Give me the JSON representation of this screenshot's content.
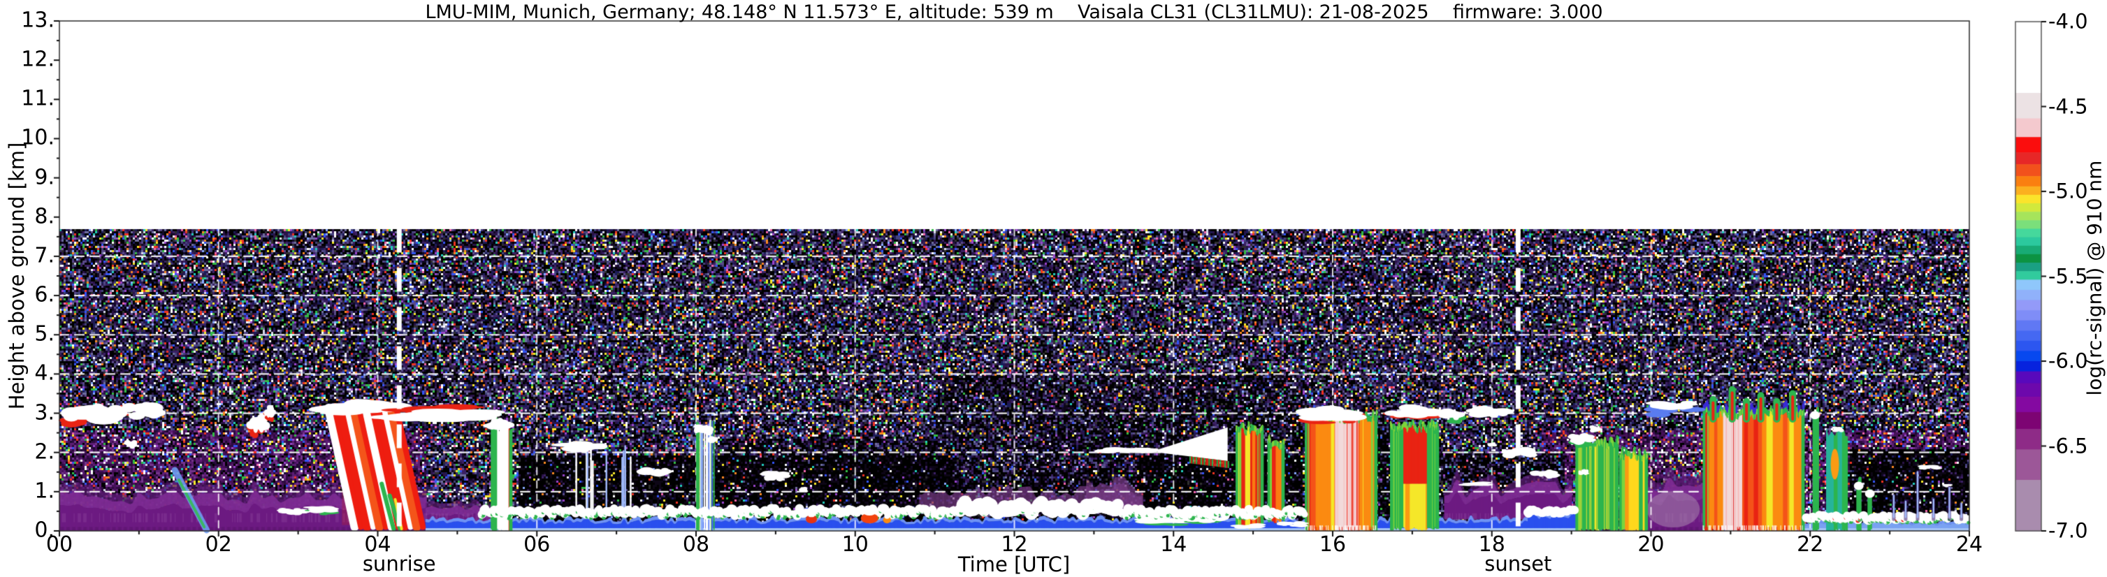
{
  "figure": {
    "title": "LMU-MIM, Munich, Germany; 48.148° N 11.573° E, altitude: 539 m    Vaisala CL31 (CL31LMU): 21-08-2025    firmware: 3.000"
  },
  "axes": {
    "xlabel": "Time [UTC]",
    "ylabel": "Height above ground [km]",
    "xticks": [
      "00",
      "02",
      "04",
      "06",
      "08",
      "10",
      "12",
      "14",
      "16",
      "18",
      "20",
      "22",
      "24"
    ],
    "yticks": [
      "13.",
      "12.",
      "11.",
      "10.",
      "9.",
      "8.",
      "7.",
      "6.",
      "5.",
      "4.",
      "3.",
      "2.",
      "1.",
      "0."
    ],
    "x_range_hours": [
      0,
      24
    ],
    "y_range_km": [
      0,
      13
    ]
  },
  "annotations": [
    {
      "label": "sunrise",
      "time_utc": 4.27
    },
    {
      "label": "sunset",
      "time_utc": 18.33
    }
  ],
  "colorbar": {
    "label": "log(rc-signal) @ 910 nm",
    "ticks": [
      "-4.0",
      "-4.5",
      "-5.0",
      "-5.5",
      "-6.0",
      "-6.5",
      "-7.0"
    ],
    "value_range": [
      -7.0,
      -4.0
    ],
    "segments": [
      [
        -4.0,
        -4.42,
        "#ffffff"
      ],
      [
        -4.42,
        -4.57,
        "#ece2e4"
      ],
      [
        -4.57,
        -4.68,
        "#f4c9ce"
      ],
      [
        -4.68,
        -4.77,
        "#fb0d0d"
      ],
      [
        -4.77,
        -4.84,
        "#e72727"
      ],
      [
        -4.84,
        -4.91,
        "#f2511c"
      ],
      [
        -4.91,
        -4.97,
        "#fa7f10"
      ],
      [
        -4.97,
        -5.02,
        "#fbb01f"
      ],
      [
        -5.02,
        -5.07,
        "#fbe42b"
      ],
      [
        -5.07,
        -5.12,
        "#d2e93c"
      ],
      [
        -5.12,
        -5.17,
        "#a6e45b"
      ],
      [
        -5.17,
        -5.22,
        "#7bdf7b"
      ],
      [
        -5.22,
        -5.27,
        "#45d89c"
      ],
      [
        -5.27,
        -5.32,
        "#2cc99e"
      ],
      [
        -5.32,
        -5.37,
        "#18ab75"
      ],
      [
        -5.37,
        -5.42,
        "#0c9342"
      ],
      [
        -5.42,
        -5.47,
        "#1aa083"
      ],
      [
        -5.47,
        -5.52,
        "#31cb9d"
      ],
      [
        -5.52,
        -5.58,
        "#8fc7fb"
      ],
      [
        -5.58,
        -5.64,
        "#90b1fa"
      ],
      [
        -5.64,
        -5.7,
        "#939af8"
      ],
      [
        -5.7,
        -5.76,
        "#7f8df7"
      ],
      [
        -5.76,
        -5.82,
        "#6078f4"
      ],
      [
        -5.82,
        -5.88,
        "#4568f2"
      ],
      [
        -5.88,
        -5.94,
        "#2c56f0"
      ],
      [
        -5.94,
        -6.0,
        "#0748ef"
      ],
      [
        -6.0,
        -6.06,
        "#0723de"
      ],
      [
        -6.06,
        -6.13,
        "#5809bc"
      ],
      [
        -6.13,
        -6.21,
        "#6d08ac"
      ],
      [
        -6.21,
        -6.3,
        "#8409a1"
      ],
      [
        -6.3,
        -6.4,
        "#7d0473"
      ],
      [
        -6.4,
        -6.52,
        "#8e2b87"
      ],
      [
        -6.52,
        -6.7,
        "#9c5798"
      ],
      [
        -6.7,
        -7.0,
        "#a98cae"
      ]
    ]
  },
  "chart_data": {
    "type": "heatmap",
    "title": "Ceilometer attenuated backscatter quicklook",
    "site": "LMU-MIM, Munich, Germany",
    "latitude": "48.148° N",
    "longitude": "11.573° E",
    "altitude_m": 539,
    "instrument": "Vaisala CL31 (CL31LMU)",
    "date": "21-08-2025",
    "firmware": "3.000",
    "xlabel": "Time [UTC]",
    "ylabel": "Height above ground [km]",
    "value_label": "log(rc-signal) @ 910 nm",
    "value_range": [
      -7.0,
      -4.0
    ],
    "x_range_hours": [
      0,
      24
    ],
    "y_range_km": [
      0,
      13
    ],
    "data_top_km": 7.7,
    "sunrise_utc": 4.27,
    "sunset_utc": 18.33,
    "grid": {
      "x_step_hours": 2,
      "y_step_km": 1,
      "style": "white dashed"
    },
    "dark_zones": [
      {
        "t0": 5.75,
        "t1": 11.25,
        "top": 1.95,
        "s": 0.82
      },
      {
        "t0": 11.25,
        "t1": 13.55,
        "top": 1.5,
        "s": 0.5
      },
      {
        "t0": 13.55,
        "t1": 15.62,
        "top": 1.95,
        "s": 0.82
      },
      {
        "t0": 16.5,
        "t1": 16.78,
        "top": 2.6,
        "s": 0.7
      },
      {
        "t0": 17.3,
        "t1": 18.9,
        "top": 2.0,
        "s": 0.4
      },
      {
        "t0": 22.48,
        "t1": 24,
        "top": 2.1,
        "s": 0.8
      },
      {
        "t0": 8.3,
        "t1": 11.0,
        "top": 2.4,
        "s": 0.35
      },
      {
        "t0": 11.0,
        "t1": 15.6,
        "top": 4.0,
        "s": 0.25
      }
    ],
    "night_layers": [
      {
        "t0": 0,
        "t1": 4.6,
        "top": 1.05
      },
      {
        "t0": 4.6,
        "t1": 5.45,
        "top": 0.7
      },
      {
        "t0": 17.4,
        "t1": 19.0,
        "top": 1.25,
        "base": 0.3
      },
      {
        "t0": 19.9,
        "t1": 20.65,
        "top": 1.35
      }
    ],
    "haze": [
      {
        "t0": 10.8,
        "t1": 13.6,
        "h0": 0.5,
        "h1": 1.0
      },
      {
        "t0": 12.9,
        "t1": 13.6,
        "h0": 0.5,
        "h1": 1.15
      }
    ],
    "blue_layer": [
      {
        "t0": 4.6,
        "t1": 18.45,
        "top": 0.32
      },
      {
        "t0": 18.45,
        "t1": 19.1,
        "top": 0.5
      },
      {
        "t0": 21.92,
        "t1": 24,
        "top": 0.26
      }
    ],
    "bl_line": [
      {
        "t0": 5.3,
        "t1": 15.65,
        "h": 0.48,
        "amp": 0.1,
        "bump": [
          11.3,
          13.3,
          0.22
        ],
        "green": true
      },
      {
        "t0": 18.45,
        "t1": 19.05,
        "h": 0.5,
        "amp": 0.06
      },
      {
        "t0": 21.95,
        "t1": 24,
        "h": 0.34,
        "amp": 0.07,
        "green": true,
        "redUntil": 23.2
      }
    ],
    "bl_patches": [
      {
        "t": 9.45,
        "h": 0.3,
        "w": 0.14,
        "d": 0.22,
        "c": "#e63311"
      },
      {
        "t": 10.18,
        "h": 0.32,
        "w": 0.22,
        "d": 0.26,
        "c": "#f2430e"
      },
      {
        "t": 10.4,
        "h": 0.28,
        "w": 0.1,
        "d": 0.18,
        "c": "#fb8b12"
      },
      {
        "t": 11.9,
        "h": 0.5,
        "w": 0.3,
        "d": 0.3,
        "c": "#ffffff"
      },
      {
        "t": 12.5,
        "h": 0.55,
        "w": 0.3,
        "d": 0.3,
        "c": "#ffffff"
      }
    ],
    "diag_streaks": [
      {
        "t0": 1.45,
        "t1": 1.85,
        "h0": 1.55,
        "h1": 0.02,
        "c": "#6f9cf3",
        "w": 9
      },
      {
        "t0": 1.5,
        "t1": 1.82,
        "h0": 1.3,
        "h1": 0.1,
        "c": "#35bb55",
        "w": 4
      }
    ],
    "spikes23": [
      {
        "t": 23.05,
        "h": 0.9
      },
      {
        "t": 23.2,
        "h": 0.75
      },
      {
        "t": 23.35,
        "h": 1.5
      },
      {
        "t": 23.55,
        "h": 0.8
      },
      {
        "t": 23.75,
        "h": 1.1
      },
      {
        "t": 23.9,
        "h": 0.7
      }
    ],
    "wedge": {
      "t0": 13.8,
      "t1": 14.68,
      "top0": 2.07,
      "top1": 2.64,
      "bot0": 2.0,
      "bot1": 1.78
    },
    "clouds": [
      [
        0.35,
        3.0,
        0.55,
        0.3,
        "red_low"
      ],
      [
        0.95,
        3.05,
        0.5,
        0.28,
        null
      ],
      [
        0.9,
        2.2,
        0.12,
        0.12,
        null
      ],
      [
        2.5,
        2.75,
        0.18,
        0.28,
        "red_low"
      ],
      [
        2.64,
        3.05,
        0.1,
        0.18,
        "red_low"
      ],
      [
        2.95,
        0.5,
        0.3,
        0.1,
        null
      ],
      [
        3.3,
        0.55,
        0.28,
        0.1,
        "green_low"
      ],
      [
        3.8,
        3.15,
        0.8,
        0.22,
        null
      ],
      [
        4.75,
        2.95,
        1.15,
        0.2,
        "red_top"
      ],
      [
        5.5,
        2.72,
        0.25,
        0.18,
        null
      ],
      [
        6.55,
        2.15,
        0.5,
        0.15,
        null
      ],
      [
        7.5,
        1.5,
        0.3,
        0.15,
        null
      ],
      [
        8.09,
        2.6,
        0.18,
        0.18,
        null
      ],
      [
        8.22,
        2.32,
        0.1,
        0.1,
        null
      ],
      [
        9.0,
        1.4,
        0.25,
        0.15,
        null
      ],
      [
        9.35,
        1.05,
        0.08,
        0.08,
        null
      ],
      [
        13.0,
        0.55,
        0.3,
        0.14,
        null
      ],
      [
        13.4,
        2.05,
        0.55,
        0.1,
        null
      ],
      [
        13.72,
        2.05,
        0.12,
        0.08,
        null
      ],
      [
        13.9,
        0.28,
        0.5,
        0.11,
        "green_low"
      ],
      [
        14.4,
        0.3,
        0.4,
        0.1,
        "green_low"
      ],
      [
        14.95,
        0.12,
        0.3,
        0.08,
        null
      ],
      [
        15.5,
        0.18,
        0.25,
        0.09,
        null
      ],
      [
        16.0,
        3.0,
        0.55,
        0.22,
        "red_low"
      ],
      [
        16.98,
        3.05,
        0.5,
        0.2,
        "red_low"
      ],
      [
        17.5,
        2.98,
        0.25,
        0.18,
        "green_low"
      ],
      [
        17.8,
        1.2,
        0.3,
        0.06,
        null
      ],
      [
        17.95,
        3.02,
        0.38,
        0.18,
        null
      ],
      [
        18.0,
        2.2,
        0.08,
        0.06,
        null
      ],
      [
        18.35,
        2.0,
        0.3,
        0.16,
        null
      ],
      [
        18.65,
        1.45,
        0.26,
        0.13,
        null
      ],
      [
        19.12,
        2.35,
        0.25,
        0.16,
        "green_low"
      ],
      [
        19.3,
        2.6,
        0.12,
        0.1,
        null
      ],
      [
        19.15,
        1.5,
        0.1,
        0.09,
        null
      ],
      [
        20.3,
        3.2,
        0.45,
        0.14,
        "blue_low"
      ],
      [
        22.35,
        2.6,
        0.1,
        0.09,
        null
      ],
      [
        23.5,
        1.62,
        0.2,
        0.07,
        null
      ],
      [
        23.72,
        1.15,
        0.08,
        0.05,
        null
      ]
    ],
    "precip_events": [
      {
        "style": "virga_red",
        "t0": 3.35,
        "t1": 4.3,
        "top": 3.25,
        "bot": 0.05
      },
      {
        "style": "mixed_white_green",
        "t0": 5.42,
        "t1": 5.68,
        "top": 2.65,
        "bot": 0.0
      },
      {
        "style": "thin_white_sparse",
        "t0": 6.3,
        "t1": 7.35,
        "top": 2.1,
        "bot": 0.35
      },
      {
        "style": "blue_streaks",
        "t0": 8.0,
        "t1": 8.24,
        "top": 2.7,
        "bot": 0.0
      },
      {
        "style": "rain_small",
        "t0": 14.78,
        "t1": 15.12,
        "top": 2.55,
        "bot": 0.1
      },
      {
        "style": "rain_small",
        "t0": 15.18,
        "t1": 15.38,
        "top": 2.2,
        "bot": 0.25
      },
      {
        "style": "rain_big",
        "t0": 15.65,
        "t1": 16.55,
        "top": 2.85,
        "bot": 0.0
      },
      {
        "style": "rain_green",
        "t0": 16.72,
        "t1": 17.32,
        "top": 2.6,
        "bot": 0.05
      },
      {
        "style": "green_cols",
        "t0": 19.05,
        "t1": 19.58,
        "top": 2.2,
        "bot": 0.0
      },
      {
        "style": "green_yellow",
        "t0": 19.6,
        "t1": 19.95,
        "top": 1.9,
        "bot": 0.0
      },
      {
        "style": "rain_huge",
        "t0": 20.65,
        "t1": 21.92,
        "top": 2.95,
        "bot": 0.0,
        "spikes": [
          [
            20.78,
            3.35
          ],
          [
            21.02,
            3.6
          ],
          [
            21.2,
            3.3
          ],
          [
            21.38,
            3.45
          ],
          [
            21.58,
            3.3
          ],
          [
            21.78,
            3.5
          ]
        ]
      },
      {
        "style": "green_thin",
        "t0": 22.03,
        "t1": 22.1,
        "top": 3.05,
        "bot": 0.0
      },
      {
        "style": "green_teal",
        "t0": 22.2,
        "t1": 22.46,
        "top": 2.5,
        "bot": 0.0
      },
      {
        "style": "green_thin",
        "t0": 22.58,
        "t1": 22.63,
        "top": 1.25,
        "bot": 0.0
      },
      {
        "style": "green_thin",
        "t0": 22.72,
        "t1": 22.76,
        "top": 1.05,
        "bot": 0.0
      }
    ]
  }
}
